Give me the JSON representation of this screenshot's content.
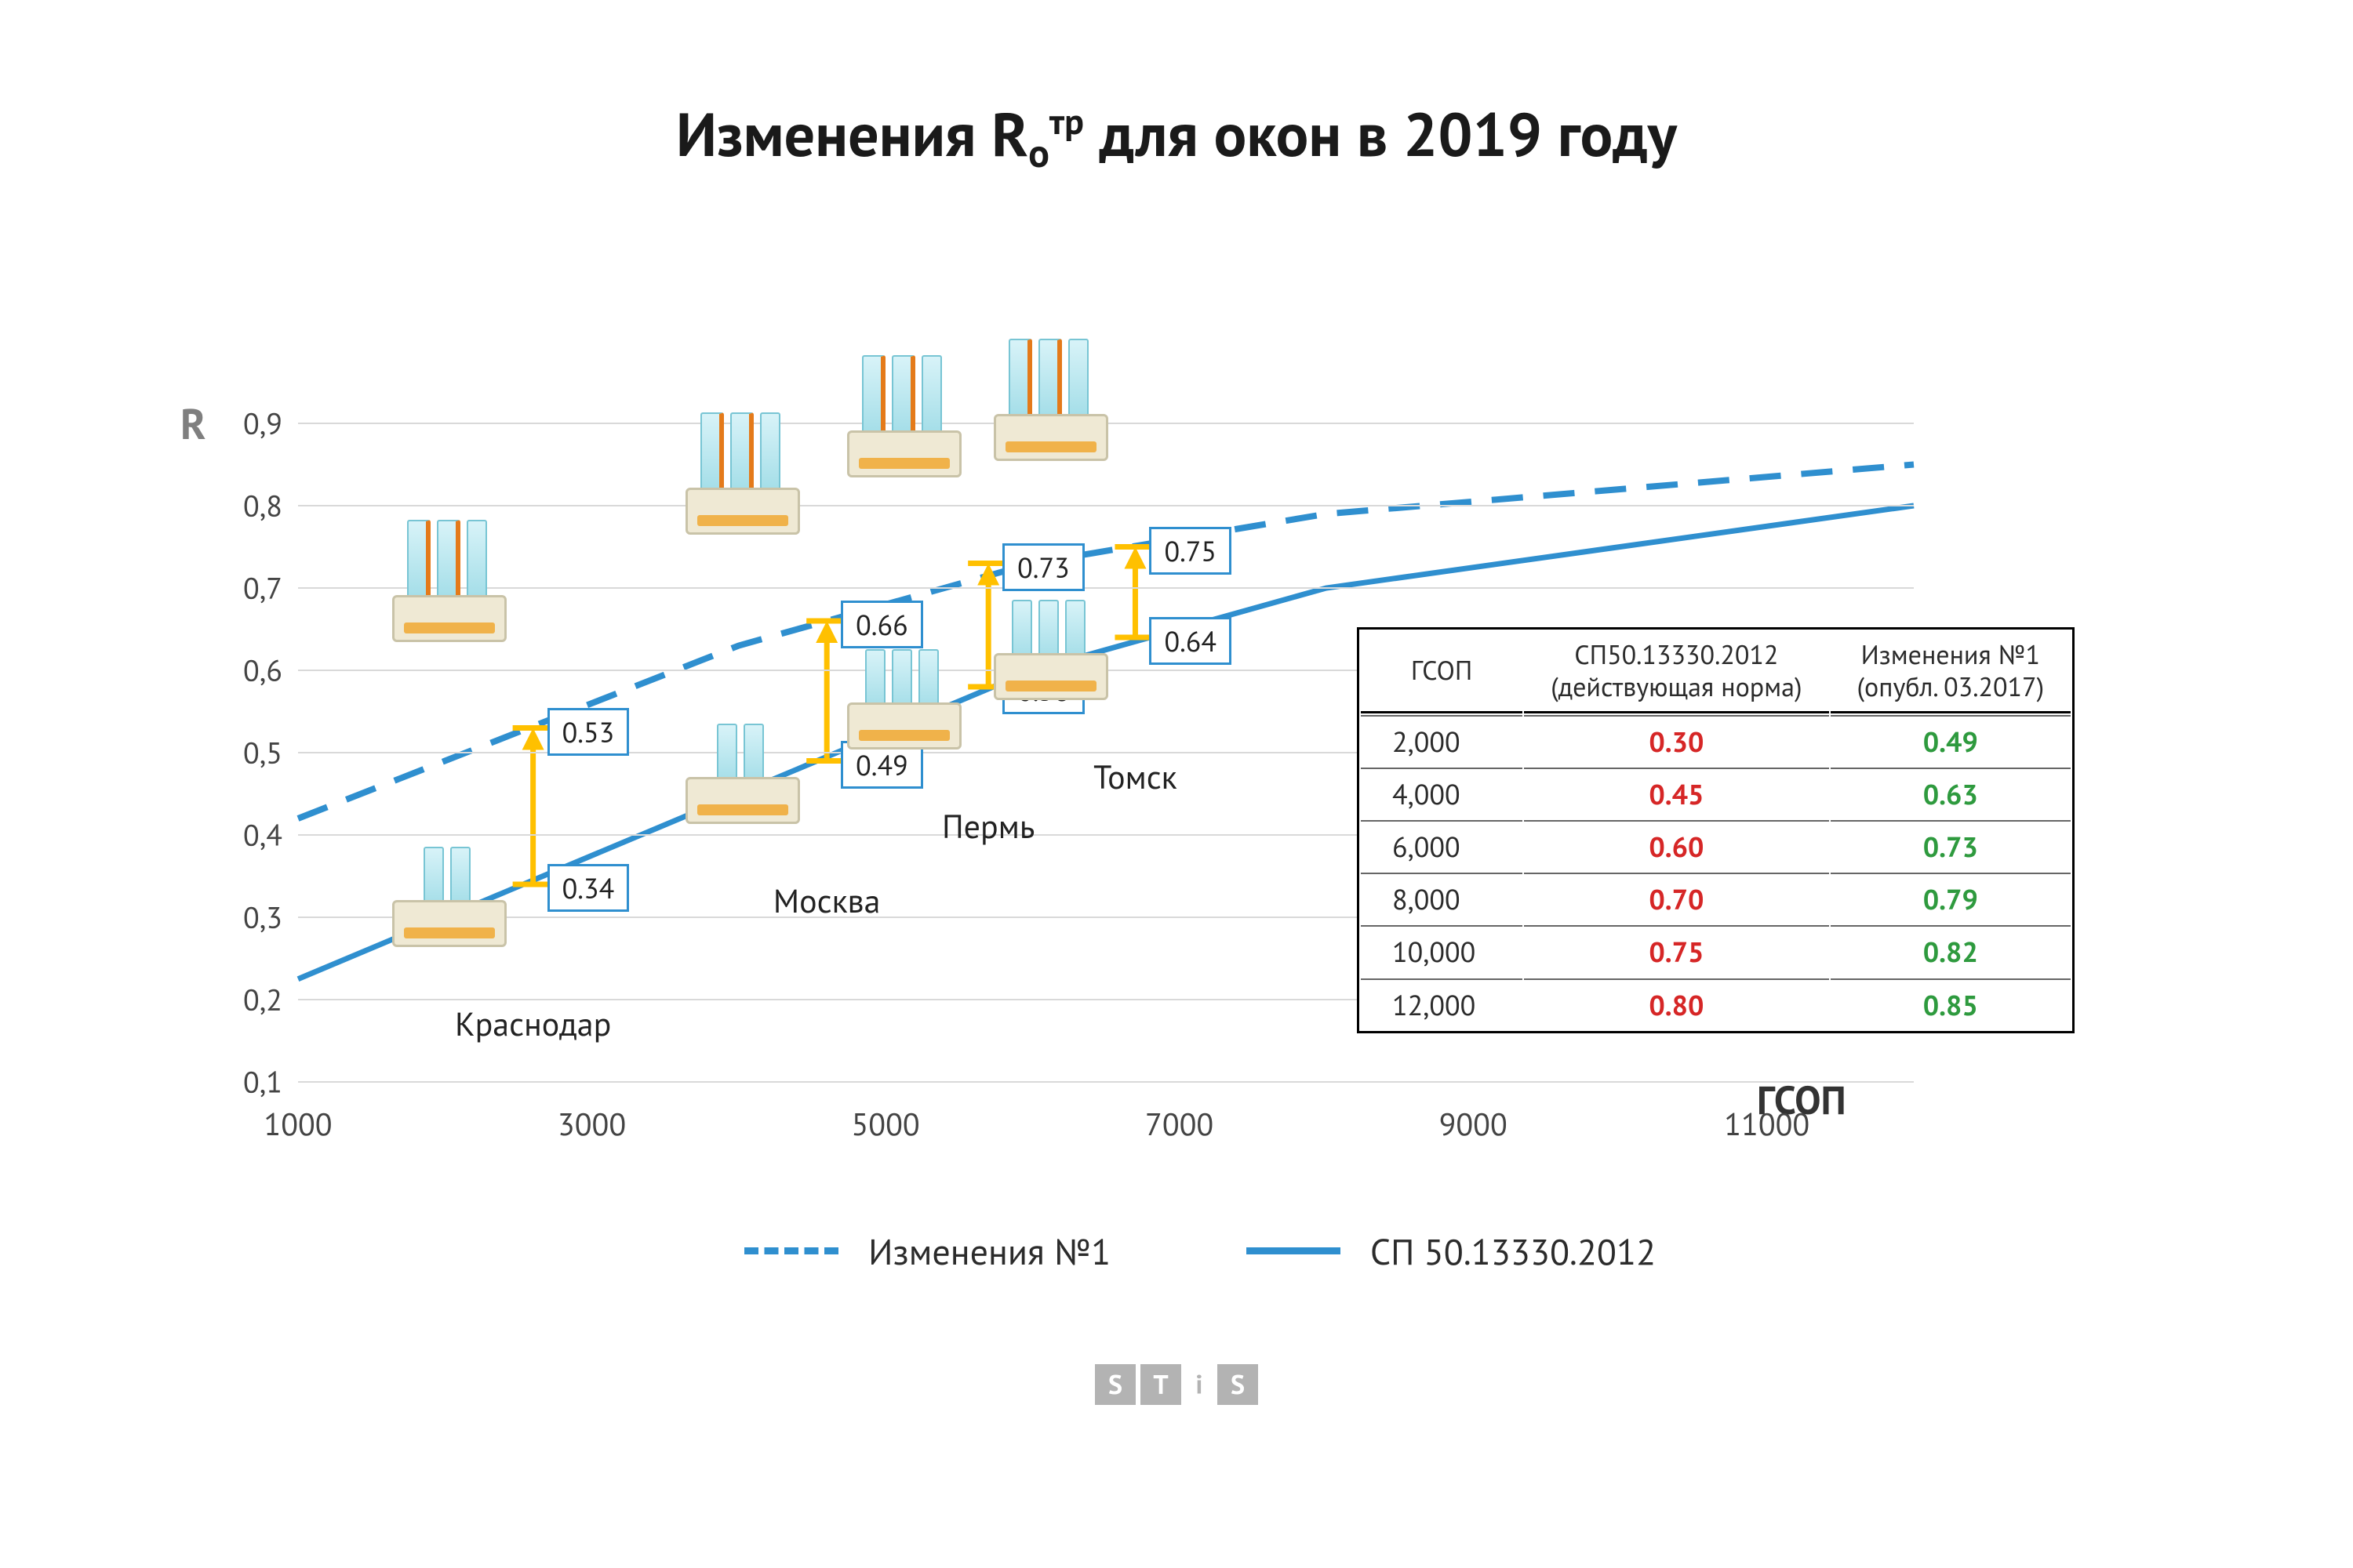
{
  "title_html": "Изменения R<sub>о</sub><sup>тр</sup> для окон в 2019 году",
  "axis": {
    "y_label": "R",
    "x_label": "ГСОП",
    "xlim": [
      1000,
      12000
    ],
    "ylim": [
      0.1,
      0.9
    ],
    "x_ticks": [
      1000,
      3000,
      5000,
      7000,
      9000,
      11000
    ],
    "y_ticks": [
      0.1,
      0.2,
      0.3,
      0.4,
      0.5,
      0.6,
      0.7,
      0.8,
      0.9
    ]
  },
  "y_tick_labels": [
    "0,1",
    "0,2",
    "0,3",
    "0,4",
    "0,5",
    "0,6",
    "0,7",
    "0,8",
    "0,9"
  ],
  "series": {
    "dash": {
      "name": "Изменения №1",
      "pts": [
        [
          1000,
          0.42
        ],
        [
          2000,
          0.49
        ],
        [
          4000,
          0.63
        ],
        [
          6000,
          0.73
        ],
        [
          8000,
          0.79
        ],
        [
          10000,
          0.82
        ],
        [
          12000,
          0.85
        ]
      ]
    },
    "solid": {
      "name": "СП 50.13330.2012",
      "pts": [
        [
          1000,
          0.225
        ],
        [
          2000,
          0.3
        ],
        [
          4000,
          0.45
        ],
        [
          6000,
          0.6
        ],
        [
          8000,
          0.7
        ],
        [
          10000,
          0.75
        ],
        [
          12000,
          0.8
        ]
      ]
    }
  },
  "cities": [
    {
      "name": "Краснодар",
      "gsop": 2600,
      "low": 0.34,
      "high": 0.53,
      "panes_low": 2,
      "panes_high": 3
    },
    {
      "name": "Москва",
      "gsop": 4600,
      "low": 0.49,
      "high": 0.66,
      "panes_low": 2,
      "panes_high": 3
    },
    {
      "name": "Пермь",
      "gsop": 5700,
      "low": 0.58,
      "high": 0.73,
      "panes_low": 3,
      "panes_high": 3
    },
    {
      "name": "Томск",
      "gsop": 6700,
      "low": 0.64,
      "high": 0.75,
      "panes_low": 3,
      "panes_high": 3
    }
  ],
  "table": {
    "head": [
      "ГСОП",
      "СП50.13330.2012\n(действующая норма)",
      "Изменения №1\n(опубл. 03.2017)"
    ],
    "rows": [
      [
        "2,000",
        "0.30",
        "0.49"
      ],
      [
        "4,000",
        "0.45",
        "0.63"
      ],
      [
        "6,000",
        "0.60",
        "0.73"
      ],
      [
        "8,000",
        "0.70",
        "0.79"
      ],
      [
        "10,000",
        "0.75",
        "0.82"
      ],
      [
        "12,000",
        "0.80",
        "0.85"
      ]
    ]
  },
  "legend": {
    "a": "Изменения №1",
    "b": "СП 50.13330.2012"
  },
  "logo": [
    "S",
    "T",
    "i",
    "S"
  ],
  "colors": {
    "line": "#2f8fcf",
    "arrow": "#ffc000",
    "red": "#d62626",
    "green": "#2e9a3e",
    "grid": "#d9d9d9"
  }
}
